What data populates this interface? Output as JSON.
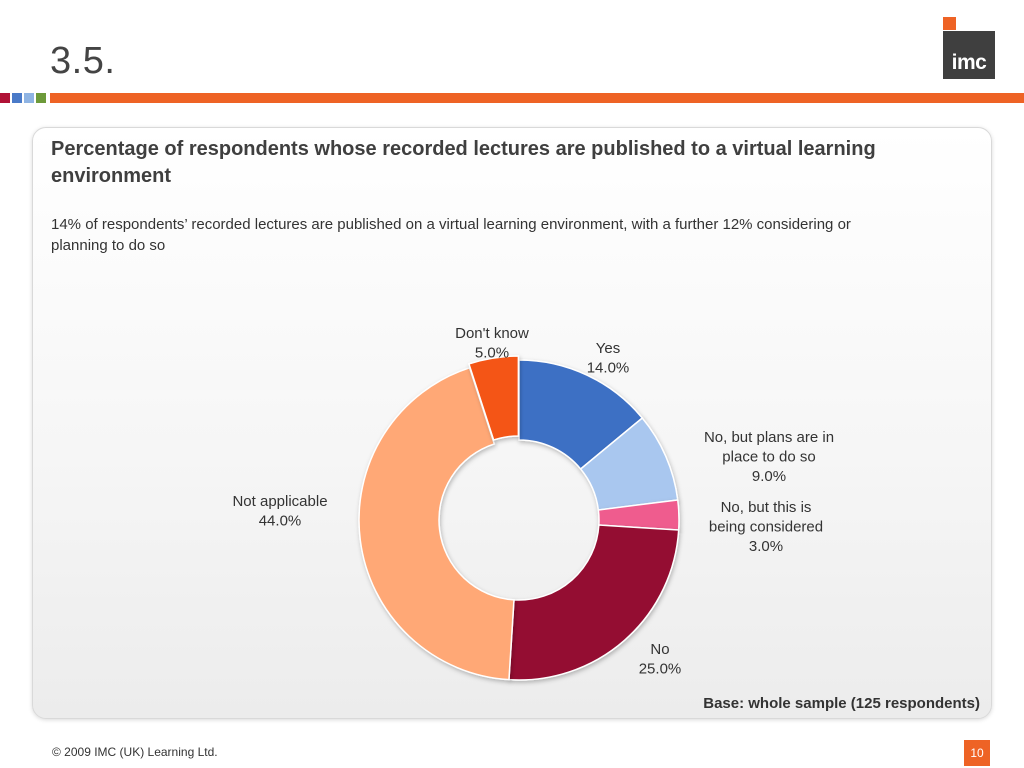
{
  "slide": {
    "title": "3.5.",
    "logo_text": "imc",
    "footer_copyright": "© 2009 IMC (UK) Learning Ltd.",
    "page_number": "10"
  },
  "colors": {
    "accent": "#ee6325",
    "decor_squares": [
      "#b01236",
      "#4a7ac8",
      "#8fb4e3",
      "#6d9a3a"
    ]
  },
  "panel": {
    "heading": "Percentage of respondents whose recorded lectures are published to a virtual learning environment",
    "summary": "14% of respondents’ recorded lectures are published on a virtual learning environment, with a further 12% considering or planning to do so",
    "base_note": "Base: whole sample (125 respondents)"
  },
  "chart_data": {
    "type": "pie",
    "donut": true,
    "slices": [
      {
        "label": "Yes",
        "value": 14.0,
        "value_label": "14.0%",
        "color": "#3d6fc4"
      },
      {
        "label": "No, but plans are in place to do so",
        "value": 9.0,
        "value_label": "9.0%",
        "color": "#a9c7ef"
      },
      {
        "label": "No, but this is being considered",
        "value": 3.0,
        "value_label": "3.0%",
        "color": "#ef5b8e"
      },
      {
        "label": "No",
        "value": 25.0,
        "value_label": "25.0%",
        "color": "#941032"
      },
      {
        "label": "Not applicable",
        "value": 44.0,
        "value_label": "44.0%",
        "color": "#ffa876"
      },
      {
        "label": "Don't know",
        "value": 5.0,
        "value_label": "5.0%",
        "color": "#f45513"
      }
    ]
  }
}
